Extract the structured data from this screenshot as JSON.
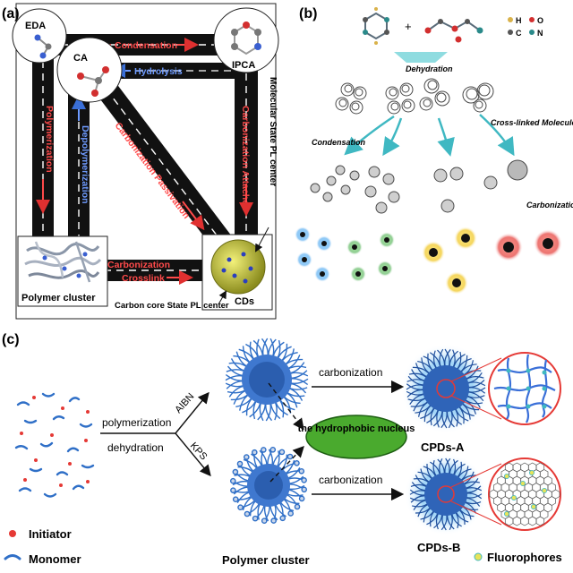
{
  "panel_a": {
    "label": "(a)",
    "nodes": {
      "eda": "EDA",
      "ca": "CA",
      "ipca": "IPCA",
      "polymer_cluster": "Polymer cluster",
      "cds": "CDs"
    },
    "arrows": {
      "condensation": "Condensation",
      "hydrolysis": "Hydrolysis",
      "polymerization": "Polymerization",
      "depolymerization": "Depolymerization",
      "carbonization_attached": "Carbonization Attached",
      "carbonization_passivation": "Carbonization Passivation",
      "carbonization": "Carbonization",
      "crosslink": "Crosslink"
    },
    "annotations": {
      "molecular_state": "Molecular State PL center",
      "carbon_core_state": "Carbon core State PL center"
    }
  },
  "panel_b": {
    "label": "(b)",
    "legend": [
      "H",
      "O",
      "C",
      "N"
    ],
    "legend_colors": [
      "#d9b24a",
      "#d22f2f",
      "#555555",
      "#2a8a8a"
    ],
    "labels": {
      "dehydration": "Dehydration",
      "crosslinked": "Cross-linked Molecules",
      "condensation": "Condensation",
      "carbonization": "Carbonization"
    },
    "glow_colors": [
      "#3fa7e6",
      "#4caf50",
      "#e8c21a",
      "#e53935"
    ]
  },
  "panel_c": {
    "label": "(c)",
    "labels": {
      "polymerization": "polymerization",
      "dehydration": "dehydration",
      "aibn": "AIBN",
      "kps": "KPS",
      "carbonization_top": "carbonization",
      "carbonization_bottom": "carbonization",
      "hydrophobic_nucleus": "the hydrophobic nucleus",
      "polymer_cluster": "Polymer cluster",
      "cpds_a": "CPDs-A",
      "cpds_b": "CPDs-B"
    },
    "legend": {
      "initiator": "Initiator",
      "monomer": "Monomer",
      "fluorophores": "Fluorophores"
    }
  }
}
